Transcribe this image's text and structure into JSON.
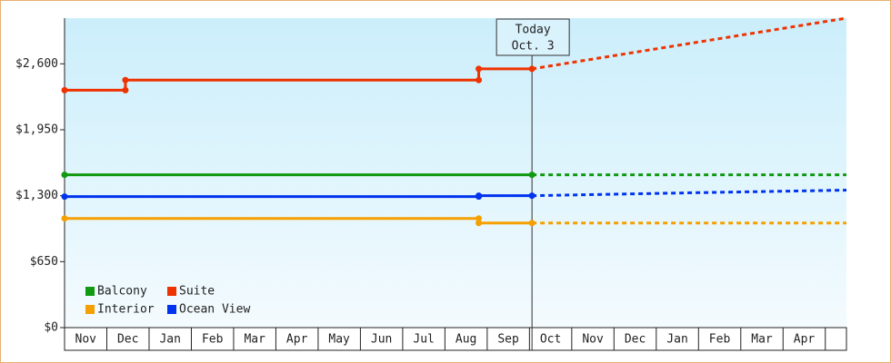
{
  "chart_data": {
    "type": "line",
    "categories": [
      "Nov",
      "Dec",
      "Jan",
      "Feb",
      "Mar",
      "Apr",
      "May",
      "Jun",
      "Jul",
      "Aug",
      "Sep",
      "Oct",
      "Nov",
      "Dec",
      "Jan",
      "Feb",
      "Mar",
      "Apr"
    ],
    "xlim": [
      0,
      18.5
    ],
    "ylim": [
      0,
      3050
    ],
    "yticks": [
      {
        "value": 0,
        "label": "$0"
      },
      {
        "value": 650,
        "label": "$650"
      },
      {
        "value": 1300,
        "label": "$1,300"
      },
      {
        "value": 1950,
        "label": "$1,950"
      },
      {
        "value": 2600,
        "label": "$2,600"
      }
    ],
    "today": {
      "x": 11.06,
      "label": "Today",
      "date": "Oct. 3"
    },
    "series": [
      {
        "name": "Balcony",
        "color": "#119911",
        "x": [
          0,
          11.06
        ],
        "values": [
          1506,
          1506
        ],
        "projected_x": [
          11.06,
          18.5
        ],
        "projected_values": [
          1506,
          1506
        ]
      },
      {
        "name": "Suite",
        "color": "#ee3300",
        "x": [
          0,
          1.44,
          1.44,
          9.8,
          9.8,
          11.06
        ],
        "values": [
          2340,
          2340,
          2440,
          2440,
          2550,
          2550
        ],
        "projected_x": [
          11.06,
          18.5
        ],
        "projected_values": [
          2550,
          3050
        ]
      },
      {
        "name": "Interior",
        "color": "#f5a000",
        "x": [
          0,
          9.8,
          9.8,
          11.06
        ],
        "values": [
          1076,
          1076,
          1031,
          1031
        ],
        "projected_x": [
          11.06,
          18.5
        ],
        "projected_values": [
          1031,
          1031
        ]
      },
      {
        "name": "Ocean View",
        "color": "#0033ee",
        "x": [
          0,
          9.8,
          9.8,
          11.06
        ],
        "values": [
          1291,
          1291,
          1300,
          1300
        ],
        "projected_x": [
          11.06,
          15,
          18.5
        ],
        "projected_values": [
          1300,
          1330,
          1355
        ]
      }
    ]
  }
}
